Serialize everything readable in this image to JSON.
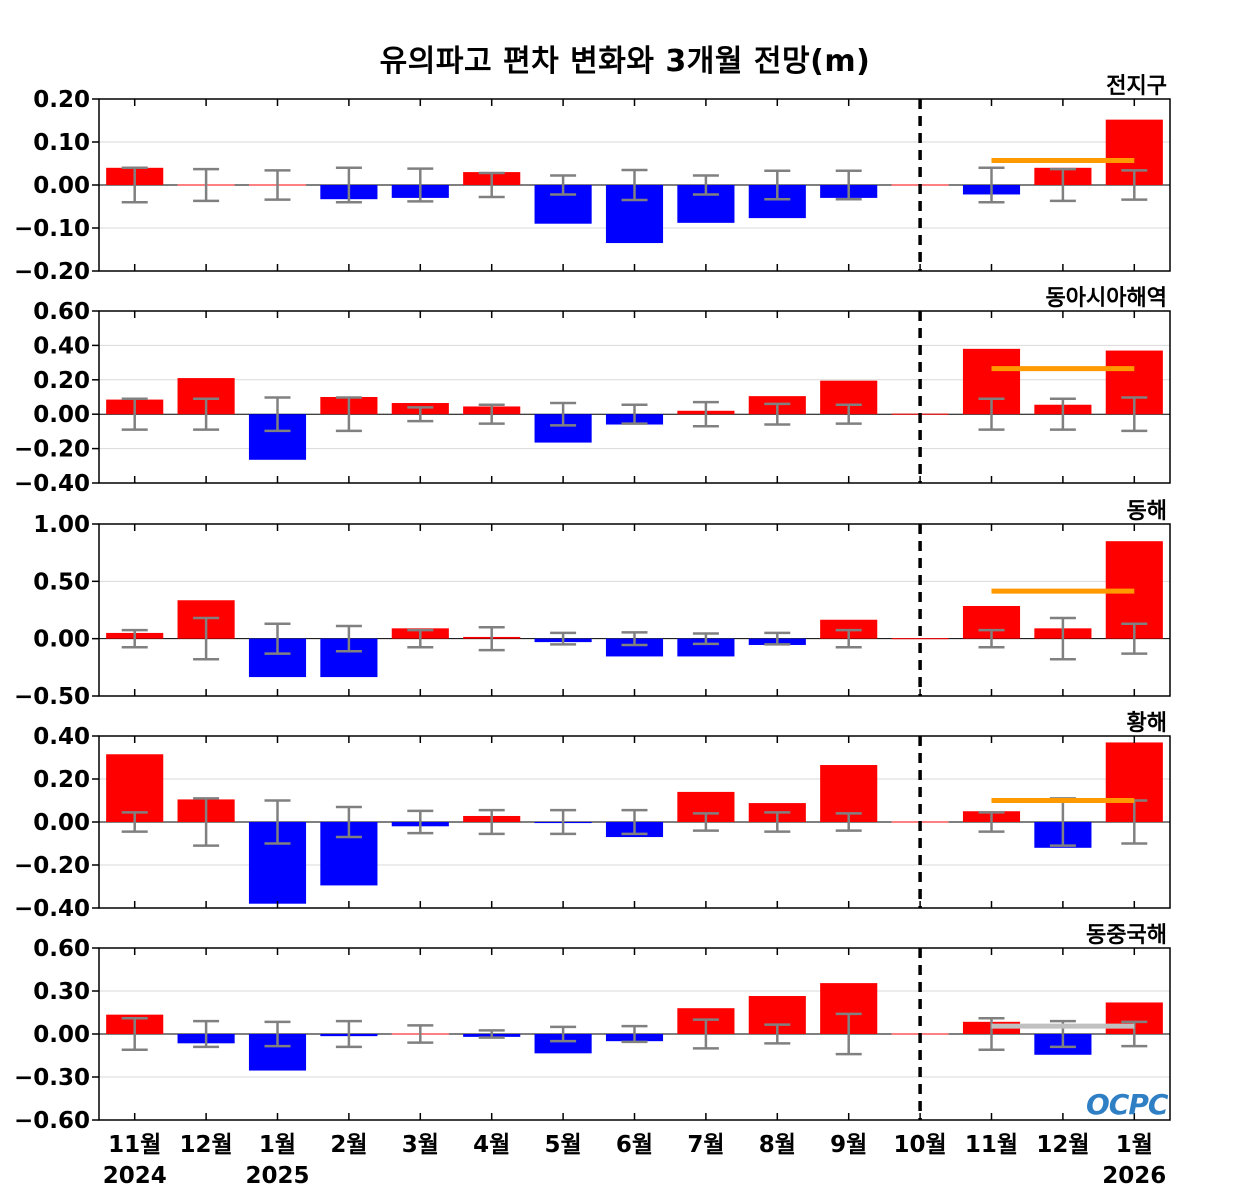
{
  "title": "유의파고 편차 변화와 3개월 전망(m)",
  "logo": "OCPC",
  "colors": {
    "positive": "#ff0000",
    "negative": "#0000ff",
    "error_bar": "#808080",
    "outlook_orange": "#ff9900",
    "outlook_gray": "#c0c0c0",
    "divider": "#000000",
    "grid": "#d9d9d9"
  },
  "chart_data": {
    "type": "bar",
    "categories": [
      "11월",
      "12월",
      "1월",
      "2월",
      "3월",
      "4월",
      "5월",
      "6월",
      "7월",
      "8월",
      "9월",
      "10월",
      "11월",
      "12월",
      "1월"
    ],
    "year_labels": [
      {
        "category_index": 0,
        "label": "2024"
      },
      {
        "category_index": 2,
        "label": "2025"
      },
      {
        "category_index": 14,
        "label": "2026"
      }
    ],
    "outlook_divider_after_category": "10월",
    "panels": [
      {
        "name": "전지구",
        "ylim": [
          -0.2,
          0.2
        ],
        "yticks": [
          -0.2,
          -0.1,
          0.0,
          0.1,
          0.2
        ],
        "ytick_labels": [
          "−0.20",
          "−0.10",
          "0.00",
          "0.10",
          "0.20"
        ],
        "values": [
          0.04,
          0.0,
          0.0,
          -0.033,
          -0.03,
          0.03,
          -0.09,
          -0.135,
          -0.088,
          -0.077,
          -0.03,
          0.0,
          -0.022,
          0.04,
          0.152
        ],
        "error_bars": [
          0.04,
          0.037,
          0.034,
          0.04,
          0.038,
          0.028,
          0.022,
          0.035,
          0.022,
          0.033,
          0.033,
          0.0,
          0.04,
          0.037,
          0.034
        ],
        "outlook_mean": 0.057,
        "outlook_color": "orange"
      },
      {
        "name": "동아시아해역",
        "ylim": [
          -0.4,
          0.6
        ],
        "yticks": [
          -0.4,
          -0.2,
          0.0,
          0.2,
          0.4,
          0.6
        ],
        "ytick_labels": [
          "−0.40",
          "−0.20",
          "0.00",
          "0.20",
          "0.40",
          "0.60"
        ],
        "values": [
          0.085,
          0.21,
          -0.265,
          0.1,
          0.065,
          0.045,
          -0.165,
          -0.06,
          0.02,
          0.105,
          0.195,
          0.0,
          0.38,
          0.055,
          0.37
        ],
        "error_bars": [
          0.09,
          0.09,
          0.097,
          0.097,
          0.04,
          0.055,
          0.065,
          0.055,
          0.07,
          0.06,
          0.055,
          0.0,
          0.09,
          0.09,
          0.097
        ],
        "outlook_mean": 0.265,
        "outlook_color": "orange"
      },
      {
        "name": "동해",
        "ylim": [
          -0.5,
          1.0
        ],
        "yticks": [
          -0.5,
          0.0,
          0.5,
          1.0
        ],
        "ytick_labels": [
          "−0.50",
          "0.00",
          "0.50",
          "1.00"
        ],
        "values": [
          0.05,
          0.335,
          -0.335,
          -0.335,
          0.09,
          0.015,
          -0.03,
          -0.155,
          -0.155,
          -0.055,
          0.165,
          0.0,
          0.285,
          0.09,
          0.85
        ],
        "error_bars": [
          0.075,
          0.18,
          0.13,
          0.11,
          0.075,
          0.1,
          0.05,
          0.055,
          0.045,
          0.05,
          0.075,
          0.0,
          0.075,
          0.18,
          0.13
        ],
        "outlook_mean": 0.415,
        "outlook_color": "orange"
      },
      {
        "name": "황해",
        "ylim": [
          -0.4,
          0.4
        ],
        "yticks": [
          -0.4,
          -0.2,
          0.0,
          0.2,
          0.4
        ],
        "ytick_labels": [
          "−0.40",
          "−0.20",
          "0.00",
          "0.20",
          "0.40"
        ],
        "values": [
          0.315,
          0.105,
          -0.38,
          -0.295,
          -0.02,
          0.028,
          -0.005,
          -0.07,
          0.14,
          0.088,
          0.265,
          0.0,
          0.05,
          -0.12,
          0.37
        ],
        "error_bars": [
          0.045,
          0.11,
          0.1,
          0.07,
          0.052,
          0.055,
          0.055,
          0.055,
          0.04,
          0.045,
          0.04,
          0.0,
          0.045,
          0.11,
          0.1
        ],
        "outlook_mean": 0.1,
        "outlook_color": "orange"
      },
      {
        "name": "동중국해",
        "ylim": [
          -0.6,
          0.6
        ],
        "yticks": [
          -0.6,
          -0.3,
          0.0,
          0.3,
          0.6
        ],
        "ytick_labels": [
          "−0.60",
          "−0.30",
          "0.00",
          "0.30",
          "0.60"
        ],
        "values": [
          0.135,
          -0.065,
          -0.255,
          -0.015,
          0.0,
          -0.02,
          -0.135,
          -0.05,
          0.18,
          0.265,
          0.355,
          0.0,
          0.085,
          -0.145,
          0.22
        ],
        "error_bars": [
          0.11,
          0.09,
          0.085,
          0.09,
          0.06,
          0.025,
          0.05,
          0.055,
          0.1,
          0.065,
          0.14,
          0.0,
          0.11,
          0.09,
          0.085
        ],
        "outlook_mean": 0.055,
        "outlook_color": "gray"
      }
    ]
  }
}
